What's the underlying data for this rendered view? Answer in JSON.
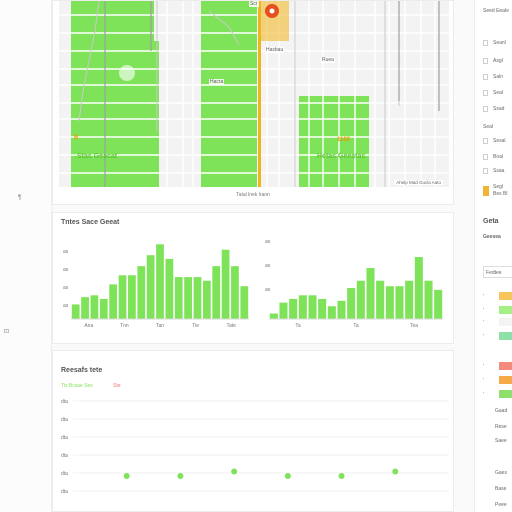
{
  "left_rail": {
    "marks": [
      "¶",
      "⊡"
    ]
  },
  "map": {
    "caption": "Tatal lnek lraon",
    "attribution": "Ahelp Mad  Gucla Aato",
    "street_labels": [
      "Hasbau",
      "Ruea",
      "Hacra"
    ],
    "top_label": "Scr",
    "places": [
      {
        "name": "Stas Geacat",
        "pin": "B",
        "pin_color": "#e99a00"
      },
      {
        "name": "Hetas Geeatas",
        "pin": "1100",
        "pin_color": "#e99a00"
      }
    ],
    "colors": {
      "park": "#7fe35a",
      "road": "#f0b41c",
      "marker": "#e5501e",
      "block": "#f1f1f1"
    }
  },
  "bars_panel": {
    "title": "Tntes Sace Geeat",
    "left_axis_marks": [
      "as",
      "as",
      "as",
      "as"
    ],
    "left_ticks": [
      "Ana",
      "Tnn",
      "Tan",
      "Tie",
      "Tate"
    ],
    "right_axis_marks": [
      "as",
      "as",
      "as"
    ],
    "right_ticks": [
      "Ta",
      "Ta",
      "Tea"
    ],
    "side_marks": [
      "ʻ5",
      "S"
    ]
  },
  "scatter_panel": {
    "title": "Reesafs tete",
    "legend": [
      {
        "label": "Tis Bcase Ses",
        "color": "#7fe35a"
      },
      {
        "label": "Ste",
        "color": "#e57b6b"
      }
    ],
    "y_ticks": [
      "dta",
      "dta",
      "dta",
      "dta",
      "dta",
      "dta"
    ]
  },
  "right_panel": {
    "top_text": "Seed Eeale",
    "rows": [
      "Seanl",
      "Asgl",
      "Saln",
      "Seal",
      "Ssad",
      "Seal",
      "Sesal",
      "Boal",
      "Ssaa",
      "Segl"
    ],
    "highlight_label": "Bes Bl",
    "section_title": "Geta",
    "section_sub": "Geesea",
    "dropdown": "Fedtee",
    "swatch_rows": [
      "ʻ",
      "ʻ",
      "ʻ",
      "ʻ",
      "ʻ",
      "ʻ",
      "ʻ"
    ],
    "swatch_colors": [
      "#f7c65a",
      "#a6ee86",
      "#f4f4f4",
      "#8ee0a8",
      "#f28b7b",
      "#f5a947",
      "#8ee06a"
    ],
    "bottom_rows": [
      "Gaad",
      "Rese",
      "Saee",
      "Gaes",
      "Base",
      "Peee"
    ]
  },
  "chart_data": [
    {
      "type": "bar",
      "series": [
        {
          "values": [
            8,
            12,
            13,
            11,
            19,
            24,
            24,
            29,
            35,
            41,
            33,
            23,
            23,
            23,
            21,
            29,
            38,
            29,
            18
          ]
        }
      ],
      "ylim": [
        0,
        45
      ],
      "x_ticks": [
        "Ana",
        "Tnn",
        "Tan",
        "Tie",
        "Tate"
      ]
    },
    {
      "type": "bar",
      "series": [
        {
          "values": [
            3,
            9,
            11,
            13,
            13,
            11,
            7,
            10,
            17,
            21,
            28,
            21,
            18,
            18,
            21,
            34,
            21,
            16
          ]
        }
      ],
      "ylim": [
        0,
        45
      ],
      "x_ticks": [
        "Ta",
        "Ta",
        "Tea"
      ]
    },
    {
      "type": "scatter",
      "series": [
        {
          "x": [
            1,
            2,
            3,
            4,
            5,
            6
          ],
          "y": [
            1,
            1,
            1.3,
            1,
            1,
            1.3
          ]
        }
      ],
      "xlim": [
        0,
        7
      ],
      "ylim": [
        0,
        6
      ]
    }
  ]
}
